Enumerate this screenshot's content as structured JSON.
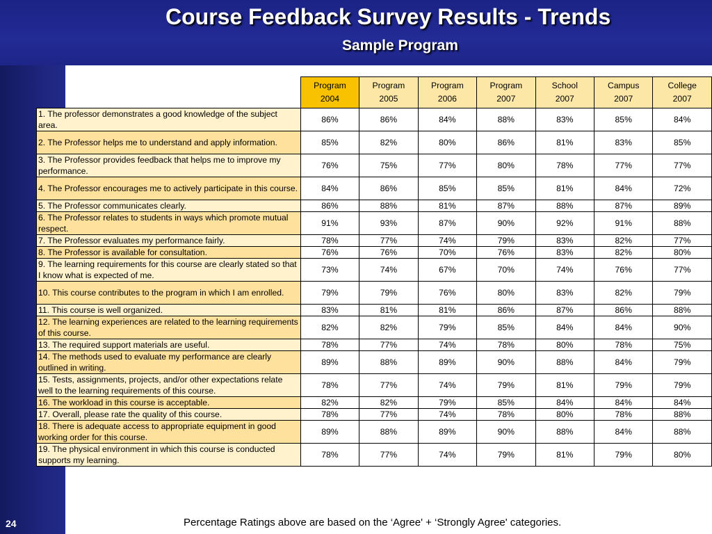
{
  "slide": {
    "title": "Course Feedback Survey Results - Trends",
    "subtitle": "Sample Program",
    "page_number": "24",
    "footnote": "Percentage Ratings above are based on the ‘Agree' + ‘Strongly Agree' categories."
  },
  "colors": {
    "background_blue": "#1b2270",
    "header_gold": "#f8c200",
    "header_light": "#fde7a6",
    "row_light": "#fff2cc",
    "row_gold": "#fde19c"
  },
  "table": {
    "columns": [
      [
        "Program",
        "2004"
      ],
      [
        "Program",
        "2005"
      ],
      [
        "Program",
        "2006"
      ],
      [
        "Program",
        "2007"
      ],
      [
        "School",
        "2007"
      ],
      [
        "Campus",
        "2007"
      ],
      [
        "College",
        "2007"
      ]
    ],
    "rows": [
      {
        "question": "1. The professor demonstrates a good knowledge of the subject area.",
        "values": [
          "86%",
          "86%",
          "84%",
          "88%",
          "83%",
          "85%",
          "84%"
        ]
      },
      {
        "question": " 2. The Professor helps me to understand and apply information.",
        "values": [
          "85%",
          "82%",
          "80%",
          "86%",
          "81%",
          "83%",
          "85%"
        ]
      },
      {
        "question": " 3. The Professor provides feedback that helps me to improve my performance.",
        "values": [
          "76%",
          "75%",
          "77%",
          "80%",
          "78%",
          "77%",
          "77%"
        ]
      },
      {
        "question": " 4. The Professor encourages me to actively participate in this course.",
        "values": [
          "84%",
          "86%",
          "85%",
          "85%",
          "81%",
          "84%",
          "72%"
        ]
      },
      {
        "question": " 5. The Professor communicates clearly.",
        "values": [
          "86%",
          "88%",
          "81%",
          "87%",
          "88%",
          "87%",
          "89%"
        ]
      },
      {
        "question": " 6. The Professor relates to students in ways which promote mutual respect.",
        "values": [
          "91%",
          "93%",
          "87%",
          "90%",
          "92%",
          "91%",
          "88%"
        ]
      },
      {
        "question": " 7. The Professor evaluates my performance fairly.",
        "values": [
          "78%",
          "77%",
          "74%",
          "79%",
          "83%",
          "82%",
          "77%"
        ]
      },
      {
        "question": " 8. The Professor is available for consultation.",
        "values": [
          "76%",
          "76%",
          "70%",
          "76%",
          "83%",
          "82%",
          "80%"
        ]
      },
      {
        "question": "9. The learning requirements for this course are clearly stated so that I know what is expected of me.",
        "values": [
          "73%",
          "74%",
          "67%",
          "70%",
          "74%",
          "76%",
          "77%"
        ]
      },
      {
        "question": " 10. This course contributes to the program in which I am enrolled.",
        "values": [
          "79%",
          "79%",
          "76%",
          "80%",
          "83%",
          "82%",
          "79%"
        ]
      },
      {
        "question": " 11. This course is well organized.",
        "values": [
          "83%",
          "81%",
          "81%",
          "86%",
          "87%",
          "86%",
          "88%"
        ]
      },
      {
        "question": " 12. The learning experiences are related to the learning requirements of this course.",
        "values": [
          "82%",
          "82%",
          "79%",
          "85%",
          "84%",
          "84%",
          "90%"
        ]
      },
      {
        "question": " 13. The required support materials are useful.",
        "values": [
          "78%",
          "77%",
          "74%",
          "78%",
          "80%",
          "78%",
          "75%"
        ]
      },
      {
        "question": " 14. The methods used to evaluate my performance are clearly outlined in writing.",
        "values": [
          "89%",
          "88%",
          "89%",
          "90%",
          "88%",
          "84%",
          "79%"
        ]
      },
      {
        "question": " 15. Tests, assignments, projects, and/or other expectations relate well to the learning requirements of this course.",
        "values": [
          "78%",
          "77%",
          "74%",
          "79%",
          "81%",
          "79%",
          "79%"
        ]
      },
      {
        "question": " 16. The workload in this course is acceptable.",
        "values": [
          "82%",
          "82%",
          "79%",
          "85%",
          "84%",
          "84%",
          "84%"
        ]
      },
      {
        "question": " 17. Overall, please rate the quality of this course.",
        "values": [
          "78%",
          "77%",
          "74%",
          "78%",
          "80%",
          "78%",
          "88%"
        ]
      },
      {
        "question": "18. There is adequate access to appropriate equipment in good working order for this course.",
        "values": [
          "89%",
          "88%",
          "89%",
          "90%",
          "88%",
          "84%",
          "88%"
        ]
      },
      {
        "question": " 19. The physical environment in which this course is conducted supports my learning.",
        "values": [
          "78%",
          "77%",
          "74%",
          "79%",
          "81%",
          "79%",
          "80%"
        ]
      }
    ]
  }
}
